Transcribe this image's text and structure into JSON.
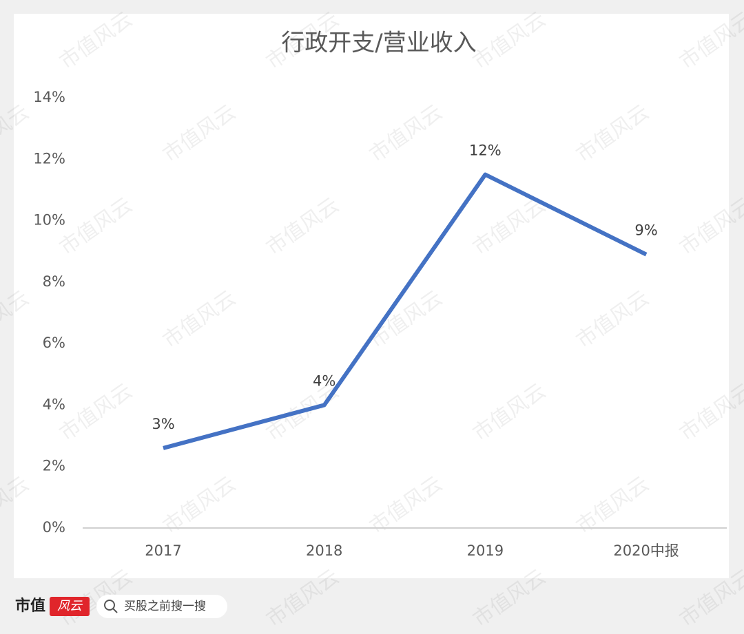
{
  "chart_data": {
    "type": "line",
    "title": "行政开支/营业收入",
    "categories": [
      "2017",
      "2018",
      "2019",
      "2020中报"
    ],
    "series": [
      {
        "name": "行政开支/营业收入",
        "color": "#4472c4",
        "values": [
          2.6,
          4.0,
          11.5,
          8.9
        ],
        "value_labels": [
          "3%",
          "4%",
          "12%",
          "9%"
        ]
      }
    ],
    "ylim": [
      0,
      14
    ],
    "yticks": [
      {
        "value": 0,
        "label": "0%"
      },
      {
        "value": 2,
        "label": "2%"
      },
      {
        "value": 4,
        "label": "4%"
      },
      {
        "value": 6,
        "label": "6%"
      },
      {
        "value": 8,
        "label": "8%"
      },
      {
        "value": 10,
        "label": "10%"
      },
      {
        "value": 12,
        "label": "12%"
      },
      {
        "value": 14,
        "label": "14%"
      }
    ],
    "grid": false
  },
  "footer": {
    "brand": "市值",
    "brand_mark": "风云",
    "search_placeholder": "买股之前搜一搜"
  },
  "watermark": "市值风云"
}
